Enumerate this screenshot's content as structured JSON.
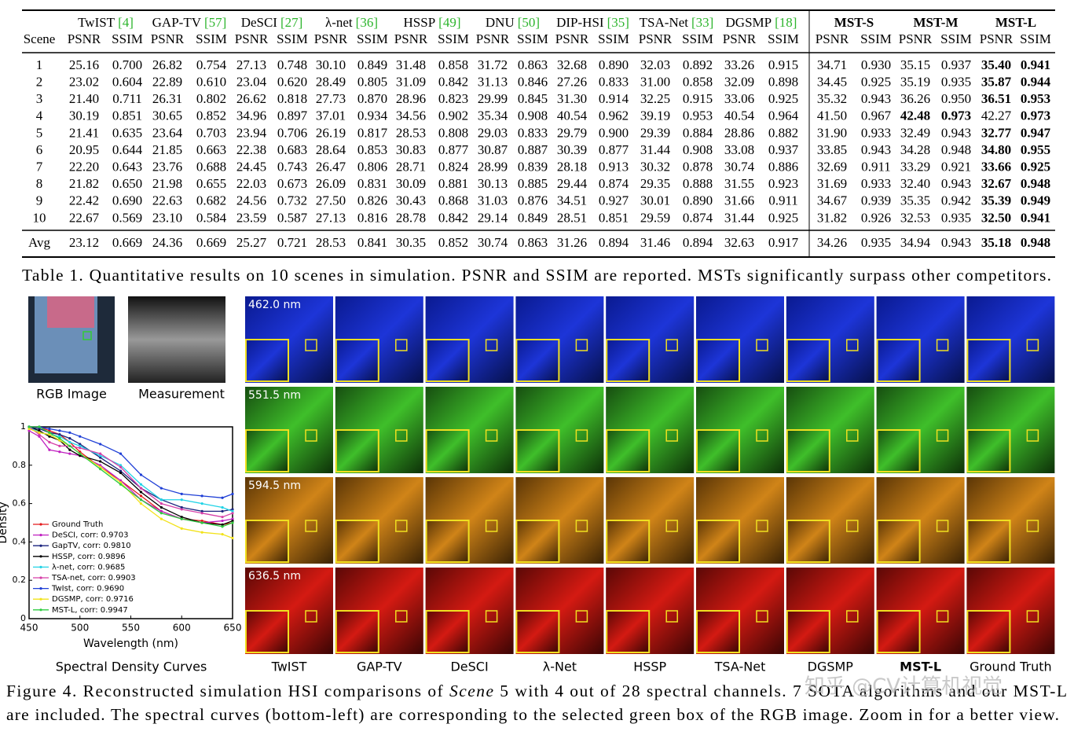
{
  "table": {
    "scene_header": "Scene",
    "methods": [
      {
        "name": "TwIST",
        "ref": "[4]"
      },
      {
        "name": "GAP-TV",
        "ref": "[57]"
      },
      {
        "name": "DeSCI",
        "ref": "[27]"
      },
      {
        "name": "λ-net",
        "ref": "[36]"
      },
      {
        "name": "HSSP",
        "ref": "[49]"
      },
      {
        "name": "DNU",
        "ref": "[50]"
      },
      {
        "name": "DIP-HSI",
        "ref": "[35]"
      },
      {
        "name": "TSA-Net",
        "ref": "[33]"
      },
      {
        "name": "DGSMP",
        "ref": "[18]"
      },
      {
        "name": "MST-S"
      },
      {
        "name": "MST-M"
      },
      {
        "name": "MST-L"
      }
    ],
    "metrics": [
      "PSNR",
      "SSIM",
      "PSNR",
      "SSIM",
      "PSNR",
      "SSIM",
      "PSNR",
      "SSIM",
      "PSNR",
      "SSIM",
      "PSNR",
      "SSIM",
      "PSNR",
      "SSIM",
      "PSNR",
      "SSIM",
      "PSNR",
      "SSIM",
      "PSNR",
      "SSIM",
      "PSNR",
      "SSIM",
      "PSNR",
      "SSIM"
    ],
    "rows": [
      {
        "cells": [
          "1",
          "25.16",
          "0.700",
          "26.82",
          "0.754",
          "27.13",
          "0.748",
          "30.10",
          "0.849",
          "31.48",
          "0.858",
          "31.72",
          "0.863",
          "32.68",
          "0.890",
          "32.03",
          "0.892",
          "33.26",
          "0.915",
          "34.71",
          "0.930",
          "35.15",
          "0.937",
          "35.40",
          "0.941"
        ],
        "bold": [
          23,
          24
        ]
      },
      {
        "cells": [
          "2",
          "23.02",
          "0.604",
          "22.89",
          "0.610",
          "23.04",
          "0.620",
          "28.49",
          "0.805",
          "31.09",
          "0.842",
          "31.13",
          "0.846",
          "27.26",
          "0.833",
          "31.00",
          "0.858",
          "32.09",
          "0.898",
          "34.45",
          "0.925",
          "35.19",
          "0.935",
          "35.87",
          "0.944"
        ],
        "bold": [
          23,
          24
        ]
      },
      {
        "cells": [
          "3",
          "21.40",
          "0.711",
          "26.31",
          "0.802",
          "26.62",
          "0.818",
          "27.73",
          "0.870",
          "28.96",
          "0.823",
          "29.99",
          "0.845",
          "31.30",
          "0.914",
          "32.25",
          "0.915",
          "33.06",
          "0.925",
          "35.32",
          "0.943",
          "36.26",
          "0.950",
          "36.51",
          "0.953"
        ],
        "bold": [
          23,
          24
        ]
      },
      {
        "cells": [
          "4",
          "30.19",
          "0.851",
          "30.65",
          "0.852",
          "34.96",
          "0.897",
          "37.01",
          "0.934",
          "34.56",
          "0.902",
          "35.34",
          "0.908",
          "40.54",
          "0.962",
          "39.19",
          "0.953",
          "40.54",
          "0.964",
          "41.50",
          "0.967",
          "42.48",
          "0.973",
          "42.27",
          "0.973"
        ],
        "bold": [
          21,
          22,
          24
        ]
      },
      {
        "cells": [
          "5",
          "21.41",
          "0.635",
          "23.64",
          "0.703",
          "23.94",
          "0.706",
          "26.19",
          "0.817",
          "28.53",
          "0.808",
          "29.03",
          "0.833",
          "29.79",
          "0.900",
          "29.39",
          "0.884",
          "28.86",
          "0.882",
          "31.90",
          "0.933",
          "32.49",
          "0.943",
          "32.77",
          "0.947"
        ],
        "bold": [
          23,
          24
        ]
      },
      {
        "cells": [
          "6",
          "20.95",
          "0.644",
          "21.85",
          "0.663",
          "22.38",
          "0.683",
          "28.64",
          "0.853",
          "30.83",
          "0.877",
          "30.87",
          "0.887",
          "30.39",
          "0.877",
          "31.44",
          "0.908",
          "33.08",
          "0.937",
          "33.85",
          "0.943",
          "34.28",
          "0.948",
          "34.80",
          "0.955"
        ],
        "bold": [
          23,
          24
        ]
      },
      {
        "cells": [
          "7",
          "22.20",
          "0.643",
          "23.76",
          "0.688",
          "24.45",
          "0.743",
          "26.47",
          "0.806",
          "28.71",
          "0.824",
          "28.99",
          "0.839",
          "28.18",
          "0.913",
          "30.32",
          "0.878",
          "30.74",
          "0.886",
          "32.69",
          "0.911",
          "33.29",
          "0.921",
          "33.66",
          "0.925"
        ],
        "bold": [
          23,
          24
        ]
      },
      {
        "cells": [
          "8",
          "21.82",
          "0.650",
          "21.98",
          "0.655",
          "22.03",
          "0.673",
          "26.09",
          "0.831",
          "30.09",
          "0.881",
          "30.13",
          "0.885",
          "29.44",
          "0.874",
          "29.35",
          "0.888",
          "31.55",
          "0.923",
          "31.69",
          "0.933",
          "32.40",
          "0.943",
          "32.67",
          "0.948"
        ],
        "bold": [
          23,
          24
        ]
      },
      {
        "cells": [
          "9",
          "22.42",
          "0.690",
          "22.63",
          "0.682",
          "24.56",
          "0.732",
          "27.50",
          "0.826",
          "30.43",
          "0.868",
          "31.03",
          "0.876",
          "34.51",
          "0.927",
          "30.01",
          "0.890",
          "31.66",
          "0.911",
          "34.67",
          "0.939",
          "35.35",
          "0.942",
          "35.39",
          "0.949"
        ],
        "bold": [
          23,
          24
        ]
      },
      {
        "cells": [
          "10",
          "22.67",
          "0.569",
          "23.10",
          "0.584",
          "23.59",
          "0.587",
          "27.13",
          "0.816",
          "28.78",
          "0.842",
          "29.14",
          "0.849",
          "28.51",
          "0.851",
          "29.59",
          "0.874",
          "31.44",
          "0.925",
          "31.82",
          "0.926",
          "32.53",
          "0.935",
          "32.50",
          "0.941"
        ],
        "bold": [
          23,
          24
        ]
      }
    ],
    "avg": {
      "cells": [
        "Avg",
        "23.12",
        "0.669",
        "24.36",
        "0.669",
        "25.27",
        "0.721",
        "28.53",
        "0.841",
        "30.35",
        "0.852",
        "30.74",
        "0.863",
        "31.26",
        "0.894",
        "31.46",
        "0.894",
        "32.63",
        "0.917",
        "34.26",
        "0.935",
        "34.94",
        "0.943",
        "35.18",
        "0.948"
      ],
      "bold": [
        23,
        24
      ]
    },
    "caption": "Table 1. Quantitative results on 10 scenes in simulation. PSNR and SSIM are reported. MSTs significantly surpass other competitors."
  },
  "figure": {
    "rgb_label": "RGB Image",
    "measurement_label": "Measurement",
    "chart_label": "Spectral Density Curves",
    "wavelengths": [
      "462.0 nm",
      "551.5 nm",
      "594.5 nm",
      "636.5 nm"
    ],
    "methods": [
      "TwIST",
      "GAP-TV",
      "DeSCI",
      "λ-Net",
      "HSSP",
      "TSA-Net",
      "DGSMP",
      "MST-L",
      "Ground Truth"
    ],
    "bold_methods": [
      7
    ],
    "caption_line1": [
      "Figure 4. Reconstructed simulation HSI comparisons of ",
      "Scene",
      " 5 with 4 out of 28 spectral channels. 7 SOTA algorithms and our MST-L"
    ],
    "caption_line2": "are included. The spectral curves (bottom-left) are corresponding to the selected green box of the RGB image. Zoom in for a better view.",
    "watermark": "知乎 @CV计算机视觉"
  },
  "chart_data": {
    "type": "line",
    "xlabel": "Wavelength (nm)",
    "ylabel": "Density",
    "xlim": [
      450,
      650
    ],
    "xticks": [
      450,
      500,
      550,
      600,
      650
    ],
    "ylim": [
      0,
      1
    ],
    "yticks": [
      0,
      0.2,
      0.4,
      0.6,
      0.8,
      1
    ],
    "legend": "lower left",
    "x": [
      450,
      460,
      470,
      480,
      490,
      500,
      520,
      540,
      560,
      580,
      600,
      620,
      640,
      650
    ],
    "series": [
      {
        "name": "Ground Truth",
        "color": "#e41a1c",
        "values": [
          1,
          1,
          0.98,
          0.96,
          0.92,
          0.87,
          0.79,
          0.72,
          0.64,
          0.56,
          0.52,
          0.51,
          0.49,
          0.5
        ]
      },
      {
        "name": "DeSCI, corr: 0.9703",
        "color": "#c020c0",
        "values": [
          0.98,
          0.95,
          0.88,
          0.87,
          0.86,
          0.85,
          0.8,
          0.72,
          0.62,
          0.56,
          0.52,
          0.5,
          0.51,
          0.52
        ]
      },
      {
        "name": "GapTV, corr: 0.9810",
        "color": "#1a237e",
        "values": [
          1,
          0.99,
          0.97,
          0.96,
          0.94,
          0.91,
          0.84,
          0.77,
          0.68,
          0.62,
          0.58,
          0.56,
          0.56,
          0.57
        ]
      },
      {
        "name": "HSSP, corr: 0.9896",
        "color": "#000000",
        "values": [
          1,
          0.98,
          0.95,
          0.93,
          0.88,
          0.85,
          0.82,
          0.76,
          0.66,
          0.58,
          0.53,
          0.5,
          0.49,
          0.51
        ]
      },
      {
        "name": "λ-net, corr: 0.9685",
        "color": "#22d3e6",
        "values": [
          1,
          0.97,
          0.96,
          0.95,
          0.92,
          0.9,
          0.85,
          0.8,
          0.7,
          0.62,
          0.62,
          0.6,
          0.58,
          0.56
        ]
      },
      {
        "name": "TSA-net, corr: 0.9903",
        "color": "#d63fa8",
        "values": [
          1,
          0.96,
          0.92,
          0.9,
          0.9,
          0.89,
          0.86,
          0.79,
          0.68,
          0.6,
          0.57,
          0.55,
          0.53,
          0.55
        ]
      },
      {
        "name": "TwIst, corr: 0.9690",
        "color": "#1f3fd6",
        "values": [
          1,
          1,
          0.99,
          0.98,
          0.97,
          0.95,
          0.91,
          0.86,
          0.75,
          0.68,
          0.65,
          0.64,
          0.63,
          0.65
        ]
      },
      {
        "name": "DGSMP, corr: 0.9716",
        "color": "#f2e21a",
        "values": [
          0.99,
          0.97,
          0.96,
          0.93,
          0.9,
          0.86,
          0.79,
          0.71,
          0.6,
          0.52,
          0.47,
          0.45,
          0.44,
          0.42
        ]
      },
      {
        "name": "MST-L, corr: 0.9947",
        "color": "#2ecc40",
        "values": [
          1,
          1,
          0.97,
          0.94,
          0.9,
          0.86,
          0.78,
          0.7,
          0.62,
          0.55,
          0.52,
          0.5,
          0.48,
          0.5
        ]
      }
    ]
  }
}
